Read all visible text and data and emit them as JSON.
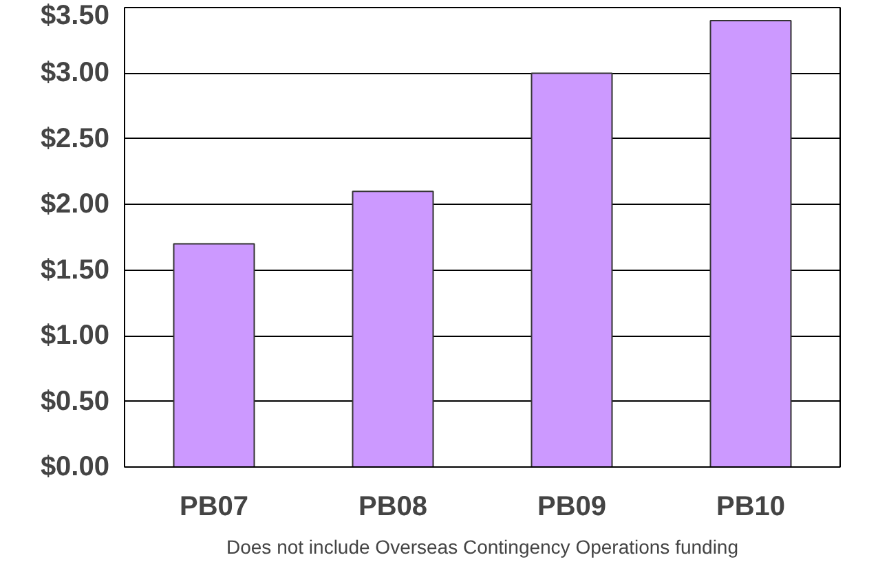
{
  "chart_data": {
    "type": "bar",
    "categories": [
      "PB07",
      "PB08",
      "PB09",
      "PB10"
    ],
    "values": [
      1.7,
      2.1,
      3.0,
      3.4
    ],
    "color": "#cc99ff",
    "ylim": [
      0,
      3.5
    ],
    "yticks": [
      {
        "value": 0,
        "label": "$0.00"
      },
      {
        "value": 0.5,
        "label": "$0.50"
      },
      {
        "value": 1,
        "label": "$1.00"
      },
      {
        "value": 1.5,
        "label": "$1.50"
      },
      {
        "value": 2,
        "label": "$2.00"
      },
      {
        "value": 2.5,
        "label": "$2.50"
      },
      {
        "value": 3,
        "label": "$3.00"
      },
      {
        "value": 3.5,
        "label": "$3.50"
      }
    ],
    "grid": "y",
    "annotations": [
      "Does not include Overseas Contingency Operations funding"
    ]
  }
}
